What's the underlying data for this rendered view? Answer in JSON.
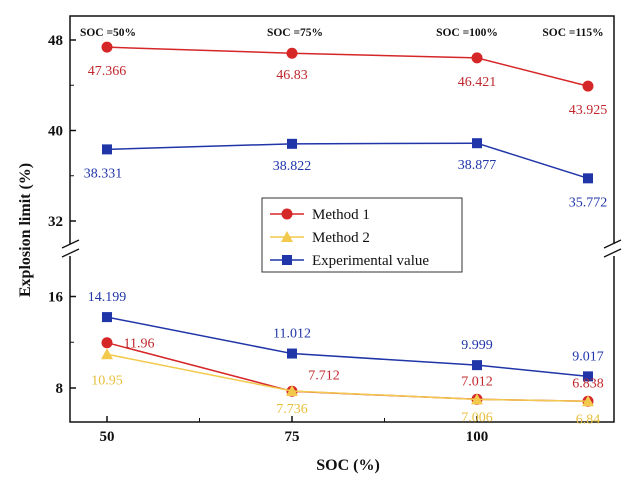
{
  "chart_data": {
    "type": "line",
    "xlabel": "SOC (%)",
    "ylabel": "Explosion limit (%)",
    "x": [
      50,
      75,
      100,
      115
    ],
    "x_ticks": [
      "50",
      "75",
      "100"
    ],
    "y_ticks_upper": [
      "32",
      "40",
      "48"
    ],
    "y_ticks_lower": [
      "8",
      "16"
    ],
    "axis_break": "between 16 and 32",
    "grid": false,
    "legend_position": "center",
    "soc_headers": [
      "SOC =50%",
      "SOC =75%",
      "SOC =100%",
      "SOC =115%"
    ],
    "groups": [
      {
        "region": "upper",
        "series": [
          {
            "name": "Method 1",
            "color": "#d62728",
            "marker": "circle",
            "values": [
              47.366,
              46.83,
              46.421,
              43.925
            ],
            "labels": [
              "47.366",
              "46.83",
              "46.421",
              "43.925"
            ]
          },
          {
            "name": "Experimental value",
            "color": "#1f35a8",
            "marker": "square",
            "values": [
              38.331,
              38.822,
              38.877,
              35.772
            ],
            "labels": [
              "38.331",
              "38.822",
              "38.877",
              "35.772"
            ]
          }
        ]
      },
      {
        "region": "lower",
        "series": [
          {
            "name": "Experimental value",
            "color": "#1f35a8",
            "marker": "square",
            "values": [
              14.199,
              11.012,
              9.999,
              9.017
            ],
            "labels": [
              "14.199",
              "11.012",
              "9.999",
              "9.017"
            ]
          },
          {
            "name": "Method 1",
            "color": "#d62728",
            "marker": "circle",
            "values": [
              11.96,
              7.712,
              7.012,
              6.838
            ],
            "labels": [
              "11.96",
              "7.712",
              "7.012",
              "6.838"
            ]
          },
          {
            "name": "Method 2",
            "color": "#f2c94c",
            "marker": "triangle",
            "values": [
              10.95,
              7.736,
              7.006,
              6.84
            ],
            "labels": [
              "10.95",
              "7.736",
              "7.006",
              "6.84"
            ]
          }
        ]
      }
    ],
    "legend": [
      {
        "name": "Method 1",
        "color": "#d62728",
        "marker": "circle"
      },
      {
        "name": "Method 2",
        "color": "#f2c94c",
        "marker": "triangle"
      },
      {
        "name": "Experimental value",
        "color": "#1f35a8",
        "marker": "square"
      }
    ]
  }
}
